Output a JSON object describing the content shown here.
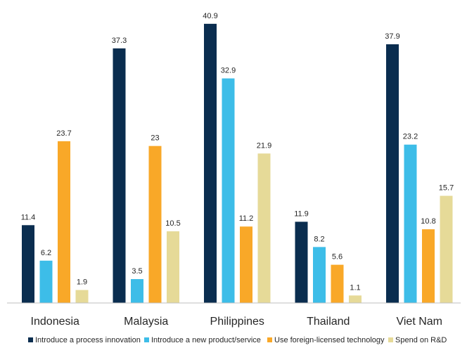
{
  "chart_data": {
    "type": "bar",
    "title": "",
    "xlabel": "",
    "ylabel": "",
    "ylim": [
      0,
      42
    ],
    "grid": false,
    "legend_position": "bottom",
    "categories": [
      "Indonesia",
      "Malaysia",
      "Philippines",
      "Thailand",
      "Viet Nam"
    ],
    "series": [
      {
        "name": "Introduce a process innovation",
        "color": "#0a2d4f",
        "values": [
          11.4,
          37.3,
          40.9,
          11.9,
          37.9
        ]
      },
      {
        "name": "Introduce a new product/service",
        "color": "#3dbde8",
        "values": [
          6.2,
          3.5,
          32.9,
          8.2,
          23.2
        ]
      },
      {
        "name": "Use foreign-licensed technology",
        "color": "#f9a828",
        "values": [
          23.7,
          23,
          11.2,
          5.6,
          10.8
        ]
      },
      {
        "name": "Spend on R&D",
        "color": "#e6da98",
        "values": [
          1.9,
          10.5,
          21.9,
          1.1,
          15.7
        ]
      }
    ]
  }
}
